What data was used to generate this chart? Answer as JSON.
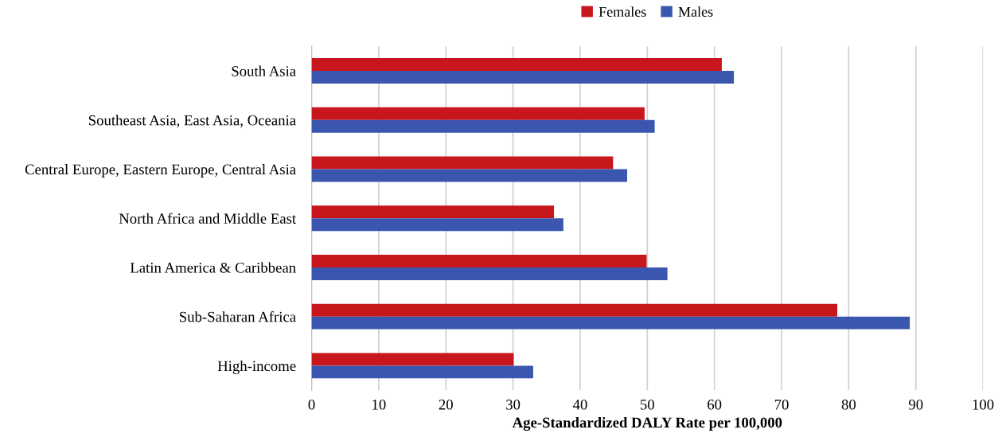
{
  "chart_data": {
    "type": "bar",
    "orientation": "horizontal",
    "xlabel": "Age-Standardized DALY Rate per 100,000",
    "categories": [
      "South Asia",
      "Southeast Asia, East Asia, Oceania",
      "Central Europe, Eastern Europe, Central Asia",
      "North Africa and Middle East",
      "Latin America & Caribbean",
      "Sub-Saharan Africa",
      "High-income"
    ],
    "series": [
      {
        "name": "Females",
        "color": "#c8161d",
        "values": [
          61.1,
          49.6,
          44.9,
          36.1,
          49.9,
          78.3,
          30.1
        ]
      },
      {
        "name": "Males",
        "color": "#3a56ae",
        "values": [
          62.9,
          51.1,
          47.0,
          37.5,
          53.0,
          89.1,
          33.0
        ]
      }
    ],
    "xlim": [
      0,
      100
    ],
    "xticks": [
      0,
      10,
      20,
      30,
      40,
      50,
      60,
      70,
      80,
      90,
      100
    ],
    "grid": "x",
    "legend": "top"
  }
}
